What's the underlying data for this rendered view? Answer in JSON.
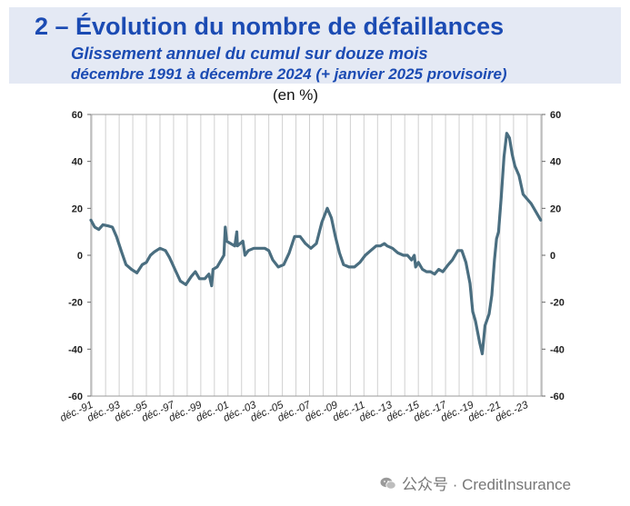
{
  "header": {
    "title": "2 – Évolution du nombre de défaillances",
    "subtitle": "Glissement annuel du cumul sur douze mois",
    "period": "décembre 1991 à décembre 2024 (+ janvier 2025 provisoire)"
  },
  "unit_label": "(en %)",
  "watermark": {
    "text": "公众号 · CreditInsurance",
    "icon": "wechat-icon"
  },
  "colors": {
    "line": "#4a6e80",
    "header_bg": "#e4e9f4",
    "title": "#1b4bb3",
    "grid": "#d0d0d0"
  },
  "chart_data": {
    "type": "line",
    "title": "2 – Évolution du nombre de défaillances",
    "subtitle": "Glissement annuel du cumul sur douze mois",
    "ylabel": "(en %)",
    "ylim": [
      -60,
      60
    ],
    "yticks": [
      60,
      40,
      20,
      0,
      -20,
      -40,
      -60
    ],
    "xlim": [
      1991.92,
      2025.08
    ],
    "grid": true,
    "xtick_labels": [
      "déc.-91",
      "déc.-93",
      "déc.-95",
      "déc.-97",
      "déc.-99",
      "déc.-01",
      "déc.-03",
      "déc.-05",
      "déc.-07",
      "déc.-09",
      "déc.-11",
      "déc.-13",
      "déc.-15",
      "déc.-17",
      "déc.-19",
      "déc.-21",
      "déc.-23"
    ],
    "xtick_years": [
      1991.92,
      1993.92,
      1995.92,
      1997.92,
      1999.92,
      2001.92,
      2003.92,
      2005.92,
      2007.92,
      2009.92,
      2011.92,
      2013.92,
      2015.92,
      2017.92,
      2019.92,
      2021.92,
      2023.92
    ],
    "series": [
      {
        "points": [
          [
            1991.92,
            15
          ],
          [
            1992.2,
            12
          ],
          [
            1992.5,
            11
          ],
          [
            1992.8,
            13
          ],
          [
            1993.2,
            12.5
          ],
          [
            1993.5,
            12
          ],
          [
            1993.8,
            8
          ],
          [
            1994.2,
            1
          ],
          [
            1994.5,
            -4
          ],
          [
            1994.9,
            -6
          ],
          [
            1995.3,
            -7.5
          ],
          [
            1995.7,
            -4
          ],
          [
            1996.0,
            -3
          ],
          [
            1996.3,
            0
          ],
          [
            1996.6,
            1.5
          ],
          [
            1997.0,
            3
          ],
          [
            1997.4,
            2
          ],
          [
            1997.7,
            -1
          ],
          [
            1998.1,
            -6
          ],
          [
            1998.5,
            -11
          ],
          [
            1998.9,
            -12.5
          ],
          [
            1999.3,
            -9
          ],
          [
            1999.6,
            -7
          ],
          [
            1999.9,
            -10
          ],
          [
            2000.3,
            -10
          ],
          [
            2000.6,
            -8
          ],
          [
            2000.8,
            -13
          ],
          [
            2000.9,
            -6
          ],
          [
            2001.2,
            -5
          ],
          [
            2001.5,
            -2
          ],
          [
            2001.7,
            0
          ],
          [
            2001.8,
            12
          ],
          [
            2001.9,
            6
          ],
          [
            2002.2,
            5
          ],
          [
            2002.5,
            4
          ],
          [
            2002.65,
            10
          ],
          [
            2002.7,
            4
          ],
          [
            2002.9,
            5
          ],
          [
            2003.1,
            6
          ],
          [
            2003.25,
            0
          ],
          [
            2003.5,
            2
          ],
          [
            2003.9,
            3
          ],
          [
            2004.3,
            3
          ],
          [
            2004.7,
            3
          ],
          [
            2005.0,
            2
          ],
          [
            2005.3,
            -2
          ],
          [
            2005.7,
            -5
          ],
          [
            2006.1,
            -4
          ],
          [
            2006.5,
            1
          ],
          [
            2006.9,
            8
          ],
          [
            2007.3,
            8
          ],
          [
            2007.7,
            5
          ],
          [
            2008.1,
            3
          ],
          [
            2008.5,
            5
          ],
          [
            2008.9,
            14
          ],
          [
            2009.3,
            20
          ],
          [
            2009.6,
            16
          ],
          [
            2009.9,
            8
          ],
          [
            2010.2,
            1
          ],
          [
            2010.5,
            -4
          ],
          [
            2010.9,
            -5
          ],
          [
            2011.3,
            -5
          ],
          [
            2011.7,
            -3
          ],
          [
            2012.1,
            0
          ],
          [
            2012.5,
            2
          ],
          [
            2012.9,
            4
          ],
          [
            2013.2,
            4
          ],
          [
            2013.5,
            5
          ],
          [
            2013.7,
            4
          ],
          [
            2014.1,
            3
          ],
          [
            2014.5,
            1
          ],
          [
            2014.9,
            0
          ],
          [
            2015.2,
            0
          ],
          [
            2015.5,
            -2
          ],
          [
            2015.7,
            0
          ],
          [
            2015.8,
            -5
          ],
          [
            2016.0,
            -3
          ],
          [
            2016.3,
            -6
          ],
          [
            2016.6,
            -7
          ],
          [
            2016.9,
            -7
          ],
          [
            2017.2,
            -8
          ],
          [
            2017.5,
            -6
          ],
          [
            2017.8,
            -7
          ],
          [
            2018.2,
            -4
          ],
          [
            2018.5,
            -2
          ],
          [
            2018.9,
            2
          ],
          [
            2019.2,
            2
          ],
          [
            2019.5,
            -3
          ],
          [
            2019.8,
            -12
          ],
          [
            2020.0,
            -24
          ],
          [
            2020.2,
            -28
          ],
          [
            2020.5,
            -37
          ],
          [
            2020.7,
            -42
          ],
          [
            2020.9,
            -30
          ],
          [
            2021.2,
            -25
          ],
          [
            2021.4,
            -17
          ],
          [
            2021.6,
            -2
          ],
          [
            2021.75,
            7
          ],
          [
            2021.9,
            10
          ],
          [
            2022.1,
            25
          ],
          [
            2022.3,
            42
          ],
          [
            2022.5,
            52
          ],
          [
            2022.7,
            50
          ],
          [
            2022.9,
            43
          ],
          [
            2023.1,
            38
          ],
          [
            2023.4,
            34
          ],
          [
            2023.7,
            26
          ],
          [
            2024.0,
            24
          ],
          [
            2024.3,
            22
          ],
          [
            2024.6,
            19
          ],
          [
            2025.0,
            15
          ]
        ]
      }
    ]
  }
}
